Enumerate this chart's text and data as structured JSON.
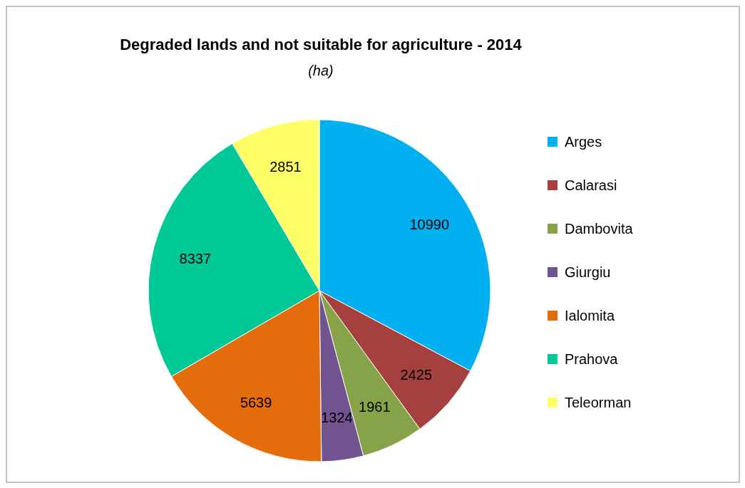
{
  "chart_data": {
    "type": "pie",
    "title": "Degraded lands and  not suitable for agriculture  - 2014",
    "subtitle": "(ha)",
    "categories": [
      "Arges",
      "Calarasi",
      "Dambovita",
      "Giurgiu",
      "Ialomita",
      "Prahova",
      "Teleorman"
    ],
    "values": [
      10990,
      2425,
      1961,
      1324,
      5639,
      8337,
      2851
    ],
    "colors": [
      "#00b0f0",
      "#a5403e",
      "#86a34a",
      "#71548f",
      "#e46c0a",
      "#00c896",
      "#ffff66"
    ],
    "data_labels": true,
    "legend": "right"
  }
}
